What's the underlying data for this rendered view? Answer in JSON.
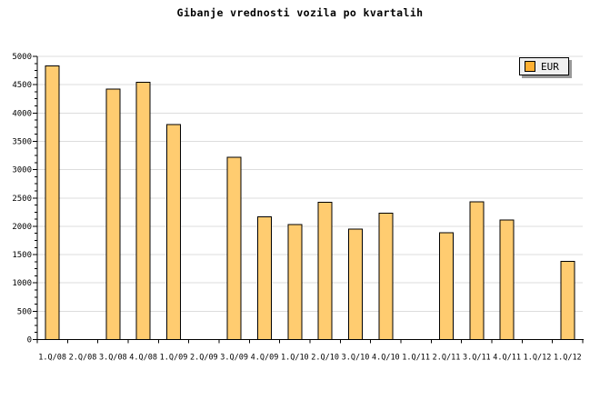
{
  "chart_data": {
    "type": "bar",
    "title": "Gibanje vrednosti vozila po kvartalih",
    "legend": {
      "label": "EUR",
      "position": "top-right"
    },
    "categories": [
      "1.Q/08",
      "2.Q/08",
      "3.Q/08",
      "4.Q/08",
      "1.Q/09",
      "2.Q/09",
      "3.Q/09",
      "4.Q/09",
      "1.Q/10",
      "2.Q/10",
      "3.Q/10",
      "4.Q/10",
      "1.Q/11",
      "2.Q/11",
      "3.Q/11",
      "4.Q/11",
      "1.Q/12",
      "1.Q/12"
    ],
    "values": [
      4830,
      null,
      4420,
      4540,
      3800,
      null,
      3220,
      2170,
      2030,
      2420,
      1950,
      2230,
      null,
      1890,
      2430,
      2110,
      null,
      1380
    ],
    "series_name": "EUR",
    "xlabel": "",
    "ylabel": "",
    "ylim": [
      0,
      5000
    ],
    "y_major_step": 500,
    "y_minor_step": 125,
    "y_tick_labels": [
      "0",
      "500",
      "1000",
      "1500",
      "2000",
      "2500",
      "3000",
      "3500",
      "4000",
      "4500",
      "5000"
    ],
    "grid": "horizontal",
    "legend_position": "top-right",
    "colors": {
      "bar_fill": "#FFCC70",
      "bar_border": "#000000",
      "legend_swatch": "#FFB032",
      "legend_bg": "#EFEFEF",
      "legend_shadow": "#999999",
      "grid": "#DDDDDD",
      "axis": "#000000",
      "text": "#000000",
      "background": "#FFFFFF"
    }
  }
}
